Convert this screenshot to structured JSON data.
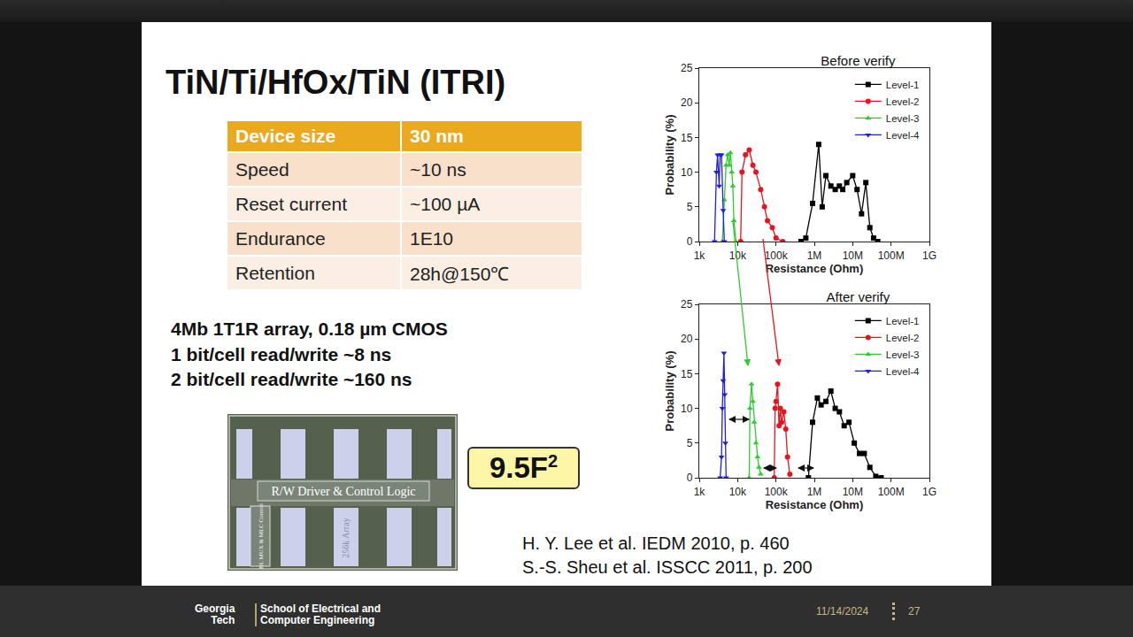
{
  "slide": {
    "title": "TiN/Ti/HfOx/TiN (ITRI)",
    "table": {
      "header": [
        "Device size",
        "30 nm"
      ],
      "rows": [
        [
          "Speed",
          "~10 ns"
        ],
        [
          "Reset current",
          "~100 µA"
        ],
        [
          "Endurance",
          "1E10"
        ],
        [
          "Retention",
          "28h@150℃"
        ]
      ]
    },
    "notes": [
      "4Mb 1T1R array, 0.18 µm CMOS",
      "1 bit/cell read/write ~8 ns",
      "2 bit/cell read/write ~160 ns"
    ],
    "die_photo": {
      "labels": [
        "R/W Driver & Control Logic",
        "BL MUX & MLC Control",
        "256k Array"
      ]
    },
    "cell_size": {
      "text": "9.5F",
      "superscript": "2"
    },
    "references": [
      "H. Y. Lee et al. IEDM 2010, p. 460",
      "S.-S. Sheu et al. ISSCC 2011, p. 200"
    ],
    "footer": {
      "school": [
        "Georgia",
        "Tech"
      ],
      "department": [
        "School of Electrical and",
        "Computer Engineering"
      ],
      "date": "11/14/2024",
      "page": "27"
    }
  },
  "chart_data": [
    {
      "type": "line",
      "title": "Before verify",
      "x_label": "Resistance (Ohm)",
      "y_label": "Probability (%)",
      "log": "x",
      "grid": false,
      "legend": "top-right",
      "xlim": [
        1000,
        1000000000
      ],
      "xticks": [
        {
          "value": 1000,
          "label": "1k"
        },
        {
          "value": 10000,
          "label": "10k"
        },
        {
          "value": 100000,
          "label": "100k"
        },
        {
          "value": 1000000,
          "label": "1M"
        },
        {
          "value": 10000000,
          "label": "10M"
        },
        {
          "value": 100000000,
          "label": "100M"
        },
        {
          "value": 1000000000,
          "label": "1G"
        }
      ],
      "ylim": [
        0,
        25
      ],
      "yticks": [
        0,
        5,
        10,
        15,
        20,
        25
      ],
      "series": [
        {
          "name": "Level-1",
          "color": "#000000",
          "marker": "square",
          "line_style": "solid",
          "x": [
            450000,
            600000,
            900000,
            1300000,
            1600000,
            2000000,
            2700000,
            3500000,
            4500000,
            5500000,
            7000000,
            10000000,
            13000000,
            17000000,
            22000000,
            28000000,
            35000000,
            45000000
          ],
          "values": [
            0,
            0.5,
            5.5,
            14,
            5,
            9.5,
            8,
            7.5,
            8,
            7.5,
            8.5,
            9.5,
            7.5,
            4,
            8.5,
            2,
            0.5,
            0
          ]
        },
        {
          "name": "Level-2",
          "color": "#e8141b",
          "marker": "circle",
          "line_style": "solid",
          "x": [
            12000,
            13000,
            16000,
            20000,
            25000,
            30000,
            40000,
            50000,
            60000,
            80000,
            100000,
            150000
          ],
          "values": [
            0,
            10,
            12.5,
            13.2,
            11,
            10,
            7.5,
            5,
            3,
            2,
            0.5,
            0
          ]
        },
        {
          "name": "Level-3",
          "color": "#2ecc2e",
          "marker": "triangle-up",
          "line_style": "solid",
          "x": [
            4000,
            4500,
            5000,
            5500,
            6000,
            6500,
            7000,
            7500,
            8000,
            9000
          ],
          "values": [
            0,
            6,
            11,
            12.5,
            11,
            12.8,
            10,
            8,
            3,
            0
          ]
        },
        {
          "name": "Level-4",
          "color": "#1f1fdd",
          "marker": "triangle-down",
          "line_style": "solid",
          "x": [
            2500,
            2800,
            3000,
            3300,
            3500,
            3800,
            4200,
            4500
          ],
          "values": [
            0,
            10,
            12.5,
            8,
            12.5,
            12.5,
            4.5,
            0
          ]
        }
      ]
    },
    {
      "type": "line",
      "title": "After verify",
      "x_label": "Resistance (Ohm)",
      "y_label": "Probability (%)",
      "log": "x",
      "grid": false,
      "legend": "top-right",
      "xlim": [
        1000,
        1000000000
      ],
      "xticks": [
        {
          "value": 1000,
          "label": "1k"
        },
        {
          "value": 10000,
          "label": "10k"
        },
        {
          "value": 100000,
          "label": "100k"
        },
        {
          "value": 1000000,
          "label": "1M"
        },
        {
          "value": 10000000,
          "label": "10M"
        },
        {
          "value": 100000000,
          "label": "100M"
        },
        {
          "value": 1000000000,
          "label": "1G"
        }
      ],
      "ylim": [
        0,
        25
      ],
      "yticks": [
        0,
        5,
        10,
        15,
        20,
        25
      ],
      "series": [
        {
          "name": "Level-1",
          "color": "#000000",
          "marker": "square",
          "line_style": "solid",
          "x": [
            700000,
            900000,
            1200000,
            1500000,
            2000000,
            2700000,
            3500000,
            4500000,
            6000000,
            8000000,
            11000000,
            15000000,
            20000000,
            28000000,
            40000000,
            55000000
          ],
          "values": [
            0,
            8,
            11.5,
            10.5,
            11,
            12.5,
            10,
            9.5,
            7.5,
            8,
            5,
            3.5,
            3.5,
            1.5,
            0.2,
            0
          ]
        },
        {
          "name": "Level-2",
          "color": "#e8141b",
          "marker": "circle",
          "line_style": "solid",
          "x": [
            90000,
            95000,
            100000,
            110000,
            120000,
            130000,
            140000,
            160000,
            180000,
            200000,
            230000
          ],
          "values": [
            0,
            10,
            11,
            13.5,
            7.5,
            10,
            8,
            9.5,
            7,
            3,
            0.5
          ]
        },
        {
          "name": "Level-3",
          "color": "#2ecc2e",
          "marker": "triangle-up",
          "line_style": "solid",
          "x": [
            20000,
            21000,
            23000,
            25000,
            27000,
            30000,
            33000,
            36000,
            40000
          ],
          "values": [
            0,
            10,
            13.5,
            11,
            8,
            5,
            3,
            1.5,
            0.5
          ]
        },
        {
          "name": "Level-4",
          "color": "#1f1fdd",
          "marker": "triangle-down",
          "line_style": "solid",
          "x": [
            3500,
            3800,
            4000,
            4200,
            4400,
            4600,
            4800,
            5000
          ],
          "values": [
            0,
            3,
            10,
            14,
            18,
            12,
            5,
            0
          ]
        }
      ]
    }
  ]
}
